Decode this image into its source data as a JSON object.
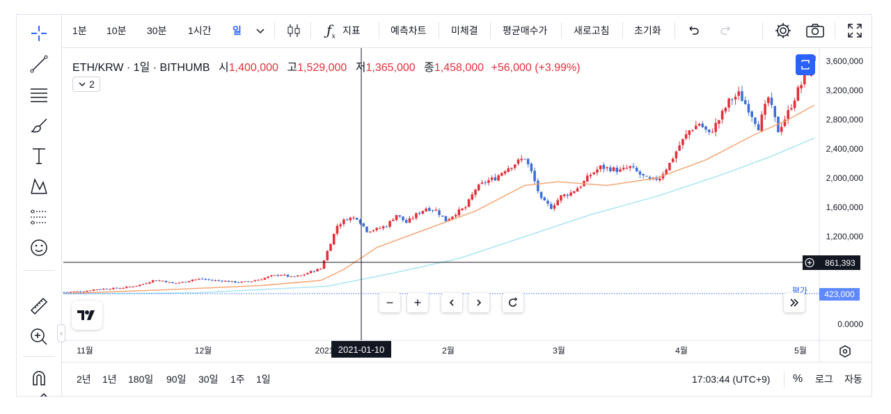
{
  "toolbar": {
    "intervals": [
      "1분",
      "10분",
      "30분",
      "1시간",
      "일"
    ],
    "active_interval": "일",
    "indicators_label": "지표",
    "buttons": [
      "예측차트",
      "미체결",
      "평균매수가",
      "새로고침",
      "초기화"
    ]
  },
  "legend": {
    "symbol": "ETH/KRW · 1일 · BITHUMB",
    "open_label": "시",
    "open": "1,400,000",
    "high_label": "고",
    "high": "1,529,000",
    "low_label": "저",
    "low": "1,365,000",
    "close_label": "종",
    "close": "1,458,000",
    "change": "+56,000 (+3.99%)",
    "collapse_count": "2"
  },
  "crosshair": {
    "date": "2021-01-10",
    "price": "861,393"
  },
  "avg_price": {
    "label": "평가",
    "value": "423,000"
  },
  "ranges": [
    "2년",
    "1년",
    "180일",
    "90일",
    "30일",
    "1주",
    "1일"
  ],
  "clock": "17:03:44 (UTC+9)",
  "scale_options": [
    "%",
    "로그",
    "자동"
  ],
  "colors": {
    "up": "#e22f3a",
    "down": "#3a6fd8",
    "ma_fast": "#f5a574",
    "ma_slow": "#a8e6ef",
    "accent": "#2962ff"
  },
  "chart_data": {
    "type": "candlestick",
    "y_ticks": [
      "3,600,000",
      "3,200,000",
      "2,800,000",
      "2,400,000",
      "2,000,000",
      "1,600,000",
      "1,200,000",
      "0.0000"
    ],
    "x_ticks": [
      "11월",
      "12월",
      "2021",
      "2월",
      "3월",
      "4월",
      "5월"
    ],
    "ylim": [
      0,
      3700000
    ],
    "grid": false,
    "series": [
      {
        "name": "ETH/KRW",
        "points": [
          [
            0,
            440000
          ],
          [
            3,
            442000
          ],
          [
            6,
            450000
          ],
          [
            9,
            475000
          ],
          [
            12,
            485000
          ],
          [
            15,
            490000
          ],
          [
            18,
            500000
          ],
          [
            21,
            520000
          ],
          [
            24,
            550000
          ],
          [
            27,
            600000
          ],
          [
            30,
            595000
          ],
          [
            33,
            560000
          ],
          [
            36,
            575000
          ],
          [
            39,
            610000
          ],
          [
            42,
            620000
          ],
          [
            45,
            600000
          ],
          [
            48,
            595000
          ],
          [
            51,
            580000
          ],
          [
            54,
            575000
          ],
          [
            57,
            590000
          ],
          [
            60,
            620000
          ],
          [
            63,
            660000
          ],
          [
            66,
            680000
          ],
          [
            69,
            645000
          ],
          [
            72,
            665000
          ],
          [
            75,
            720000
          ],
          [
            78,
            760000
          ],
          [
            80,
            1000000
          ],
          [
            83,
            1350000
          ],
          [
            86,
            1450000
          ],
          [
            89,
            1458000
          ],
          [
            92,
            1280000
          ],
          [
            95,
            1300000
          ],
          [
            98,
            1350000
          ],
          [
            101,
            1500000
          ],
          [
            104,
            1390000
          ],
          [
            107,
            1500000
          ],
          [
            110,
            1590000
          ],
          [
            113,
            1560000
          ],
          [
            116,
            1420000
          ],
          [
            119,
            1520000
          ],
          [
            122,
            1600000
          ],
          [
            125,
            1850000
          ],
          [
            128,
            1950000
          ],
          [
            131,
            2000000
          ],
          [
            134,
            2120000
          ],
          [
            137,
            2200000
          ],
          [
            140,
            2280000
          ],
          [
            142,
            2080000
          ],
          [
            145,
            1700000
          ],
          [
            148,
            1600000
          ],
          [
            151,
            1750000
          ],
          [
            154,
            1800000
          ],
          [
            157,
            1900000
          ],
          [
            160,
            2050000
          ],
          [
            163,
            2150000
          ],
          [
            166,
            2130000
          ],
          [
            169,
            2100000
          ],
          [
            172,
            2150000
          ],
          [
            175,
            2050000
          ],
          [
            178,
            1960000
          ],
          [
            181,
            2010000
          ],
          [
            184,
            2200000
          ],
          [
            187,
            2450000
          ],
          [
            190,
            2650000
          ],
          [
            193,
            2750000
          ],
          [
            196,
            2600000
          ],
          [
            199,
            2800000
          ],
          [
            202,
            3050000
          ],
          [
            205,
            3150000
          ],
          [
            208,
            2950000
          ],
          [
            211,
            2700000
          ],
          [
            214,
            3100000
          ],
          [
            217,
            2650000
          ],
          [
            220,
            2900000
          ],
          [
            223,
            3200000
          ],
          [
            226,
            3450000
          ],
          [
            228,
            3700000
          ]
        ]
      },
      {
        "name": "",
        "points": [
          [
            0,
            420000
          ],
          [
            30,
            470000
          ],
          [
            60,
            530000
          ],
          [
            78,
            600000
          ],
          [
            85,
            750000
          ],
          [
            95,
            1050000
          ],
          [
            110,
            1300000
          ],
          [
            125,
            1550000
          ],
          [
            140,
            1900000
          ],
          [
            150,
            1950000
          ],
          [
            165,
            1900000
          ],
          [
            180,
            2000000
          ],
          [
            195,
            2250000
          ],
          [
            210,
            2600000
          ],
          [
            220,
            2800000
          ],
          [
            228,
            3000000
          ]
        ]
      },
      {
        "name": "",
        "points": [
          [
            0,
            415000
          ],
          [
            40,
            430000
          ],
          [
            80,
            520000
          ],
          [
            100,
            700000
          ],
          [
            120,
            900000
          ],
          [
            140,
            1200000
          ],
          [
            160,
            1500000
          ],
          [
            180,
            1750000
          ],
          [
            200,
            2050000
          ],
          [
            215,
            2300000
          ],
          [
            228,
            2550000
          ]
        ]
      }
    ],
    "avg_price_line": 423000,
    "crosshair_price": 861393
  }
}
